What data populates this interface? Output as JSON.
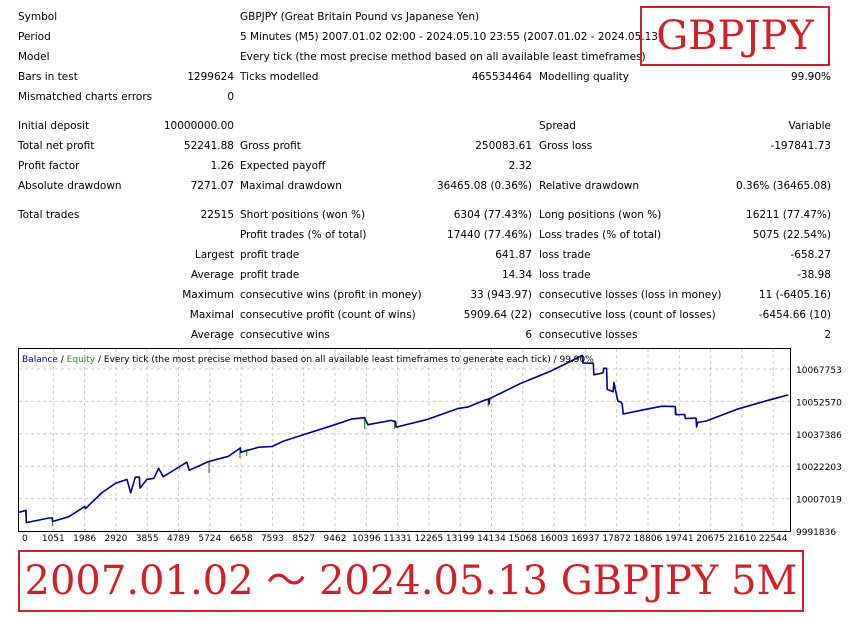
{
  "report": {
    "symbol_label": "Symbol",
    "symbol_value": "GBPJPY (Great Britain Pound vs Japanese Yen)",
    "period_label": "Period",
    "period_value": "5 Minutes (M5) 2007.01.02 02:00 - 2024.05.10 23:55 (2007.01.02 - 2024.05.13)",
    "model_label": "Model",
    "model_value": "Every tick (the most precise method based on all available least timeframes)",
    "bars_label": "Bars in test",
    "bars_value": "1299624",
    "ticks_label": "Ticks modelled",
    "ticks_value": "465534464",
    "quality_label": "Modelling quality",
    "quality_value": "99.90%",
    "mismatch_label": "Mismatched charts errors",
    "mismatch_value": "0",
    "deposit_label": "Initial deposit",
    "deposit_value": "10000000.00",
    "spread_label": "Spread",
    "spread_value": "Variable",
    "netprofit_label": "Total net profit",
    "netprofit_value": "52241.88",
    "grossprofit_label": "Gross profit",
    "grossprofit_value": "250083.61",
    "grossloss_label": "Gross loss",
    "grossloss_value": "-197841.73",
    "pf_label": "Profit factor",
    "pf_value": "1.26",
    "payoff_label": "Expected payoff",
    "payoff_value": "2.32",
    "absdd_label": "Absolute drawdown",
    "absdd_value": "7271.07",
    "maxdd_label": "Maximal drawdown",
    "maxdd_value": "36465.08 (0.36%)",
    "reldd_label": "Relative drawdown",
    "reldd_value": "0.36% (36465.08)",
    "trades_label": "Total trades",
    "trades_value": "22515",
    "short_label": "Short positions (won %)",
    "short_value": "6304 (77.43%)",
    "long_label": "Long positions (won %)",
    "long_value": "16211 (77.47%)",
    "ptrades_label": "Profit trades (% of total)",
    "ptrades_value": "17440 (77.46%)",
    "ltrades_label": "Loss trades (% of total)",
    "ltrades_value": "5075 (22.54%)",
    "largest_label": "Largest",
    "largest_profit_label": "profit trade",
    "largest_profit_value": "641.87",
    "largest_loss_label": "loss trade",
    "largest_loss_value": "-658.27",
    "average_label": "Average",
    "average_profit_label": "profit trade",
    "average_profit_value": "14.34",
    "average_loss_label": "loss trade",
    "average_loss_value": "-38.98",
    "maximum_label": "Maximum",
    "maxwins_label": "consecutive wins (profit in money)",
    "maxwins_value": "33 (943.97)",
    "maxlosses_label": "consecutive losses (loss in money)",
    "maxlosses_value": "11 (-6405.16)",
    "maximal_label": "Maximal",
    "maxprofit_label": "consecutive profit (count of wins)",
    "maxprofit_value": "5909.64 (22)",
    "maxloss_label": "consecutive loss (count of losses)",
    "maxloss_value": "-6454.66 (10)",
    "average2_label": "Average",
    "avgwins_label": "consecutive wins",
    "avgwins_value": "6",
    "avglosses_label": "consecutive losses",
    "avglosses_value": "2"
  },
  "badge": "GBPJPY",
  "banner": "2007.01.02 ～ 2024.05.13 GBPJPY 5M",
  "chart_data": {
    "type": "line",
    "legend_balance": "Balance",
    "legend_sep": " / ",
    "legend_equity": "Equity",
    "legend_rest": " / Every tick (the most precise method based on all available least timeframes to generate each tick) / 99.90%",
    "x_ticks": [
      "0",
      "1051",
      "1986",
      "2920",
      "3855",
      "4789",
      "5724",
      "6658",
      "7593",
      "8527",
      "9462",
      "10396",
      "11331",
      "12265",
      "13199",
      "14134",
      "15068",
      "16003",
      "16937",
      "17872",
      "18806",
      "19741",
      "20675",
      "21610",
      "22544"
    ],
    "y_ticks": [
      "10067753",
      "10052570",
      "10037386",
      "10022203",
      "10007019",
      "9991836"
    ],
    "xlim": [
      0,
      23200
    ],
    "ylim": [
      9991836,
      10075345
    ],
    "colors": {
      "balance": "#00008b",
      "equity": "#2e8b2e",
      "grid": "#c8c8c8"
    },
    "balance": [
      [
        0,
        10000400
      ],
      [
        210,
        10001300
      ],
      [
        220,
        9995700
      ],
      [
        900,
        9997800
      ],
      [
        1000,
        9997800
      ],
      [
        1010,
        9996200
      ],
      [
        1500,
        9998400
      ],
      [
        1980,
        10003100
      ],
      [
        2000,
        10002100
      ],
      [
        2500,
        10009500
      ],
      [
        2920,
        10013800
      ],
      [
        3250,
        10015500
      ],
      [
        3360,
        10009300
      ],
      [
        3500,
        10016500
      ],
      [
        3620,
        10016600
      ],
      [
        3640,
        10011500
      ],
      [
        3850,
        10015500
      ],
      [
        4060,
        10016000
      ],
      [
        4200,
        10020600
      ],
      [
        4340,
        10016700
      ],
      [
        4570,
        10018900
      ],
      [
        5050,
        10023400
      ],
      [
        5120,
        10019700
      ],
      [
        5700,
        10023700
      ],
      [
        6300,
        10026100
      ],
      [
        6660,
        10029900
      ],
      [
        6680,
        10028000
      ],
      [
        7220,
        10030300
      ],
      [
        7620,
        10030600
      ],
      [
        7960,
        10033100
      ],
      [
        8530,
        10035900
      ],
      [
        9460,
        10040400
      ],
      [
        10000,
        10043200
      ],
      [
        10400,
        10043800
      ],
      [
        10500,
        10040600
      ],
      [
        11200,
        10042600
      ],
      [
        11330,
        10042000
      ],
      [
        11350,
        10039500
      ],
      [
        12260,
        10042900
      ],
      [
        13200,
        10048000
      ],
      [
        13520,
        10048800
      ],
      [
        14000,
        10051800
      ],
      [
        14130,
        10052400
      ],
      [
        14150,
        10050200
      ],
      [
        14160,
        10052600
      ],
      [
        15070,
        10059400
      ],
      [
        16000,
        10065200
      ],
      [
        16500,
        10068900
      ],
      [
        16950,
        10072500
      ],
      [
        16970,
        10068900
      ],
      [
        17280,
        10068800
      ],
      [
        17300,
        10063500
      ],
      [
        17570,
        10064400
      ],
      [
        17600,
        10066500
      ],
      [
        17680,
        10066500
      ],
      [
        17700,
        10056800
      ],
      [
        17880,
        10055700
      ],
      [
        17900,
        10060000
      ],
      [
        18020,
        10051400
      ],
      [
        18100,
        10051100
      ],
      [
        18150,
        10050100
      ],
      [
        18180,
        10045500
      ],
      [
        18800,
        10047500
      ],
      [
        19350,
        10049100
      ],
      [
        19750,
        10048900
      ],
      [
        19770,
        10045200
      ],
      [
        20030,
        10045300
      ],
      [
        20050,
        10043400
      ],
      [
        20370,
        10043700
      ],
      [
        20390,
        10039600
      ],
      [
        20420,
        10041600
      ],
      [
        20680,
        10042300
      ],
      [
        21610,
        10047700
      ],
      [
        22540,
        10051800
      ],
      [
        23150,
        10054300
      ]
    ],
    "equity_dips": [
      [
        200,
        10000900,
        9999200
      ],
      [
        1010,
        9996200,
        9994000
      ],
      [
        4840,
        10022000,
        10020400
      ],
      [
        5720,
        10023800,
        10018400
      ],
      [
        6650,
        10029700,
        10025300
      ],
      [
        6850,
        10029500,
        10026300
      ],
      [
        10400,
        10043800,
        10038600
      ],
      [
        11300,
        10042600,
        10038700
      ],
      [
        14120,
        10052400,
        10049000
      ],
      [
        19740,
        10048900,
        10045000
      ],
      [
        20390,
        10043600,
        10039600
      ]
    ]
  }
}
